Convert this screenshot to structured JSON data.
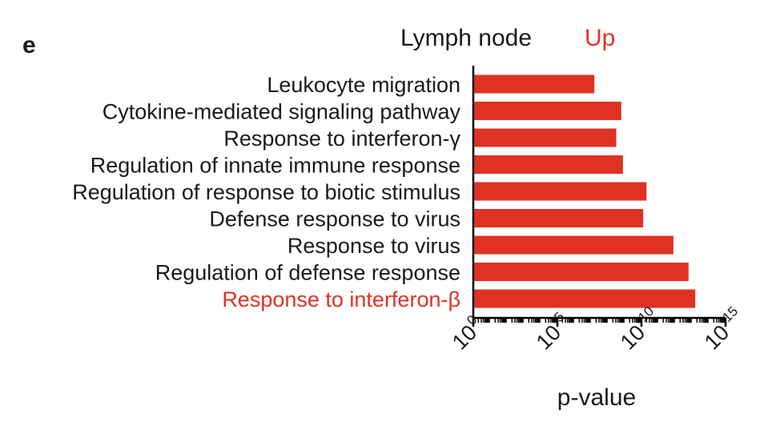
{
  "panel_label": "e",
  "title": {
    "tissue": "Lymph node",
    "direction": "Up"
  },
  "colors": {
    "bar": "#e03224",
    "highlight_text": "#e03224",
    "title_direction": "#e03224",
    "text": "#1a1a1a",
    "axis": "#000000"
  },
  "chart_data": {
    "type": "bar",
    "orientation": "horizontal",
    "categories": [
      "Leukocyte migration",
      "Cytokine-mediated signaling pathway",
      "Response to interferon-γ",
      "Regulation of innate immune response",
      "Regulation of response to biotic stimulus",
      "Defense response to virus",
      "Response to virus",
      "Regulation of defense response",
      "Response to interferon-β"
    ],
    "highlighted_category": "Response to interferon-β",
    "values": [
      7.2,
      8.8,
      8.5,
      8.9,
      10.3,
      10.1,
      11.9,
      12.8,
      13.2
    ],
    "value_meaning": "-log10(p-value)",
    "xlabel": "p-value",
    "xlim": [
      0,
      15
    ],
    "x_ticks": [
      {
        "base": "10",
        "exp": "0",
        "value": 0
      },
      {
        "base": "10",
        "exp": "-5",
        "value": 5
      },
      {
        "base": "10",
        "exp": "-10",
        "value": 10
      },
      {
        "base": "10",
        "exp": "-15",
        "value": 15
      }
    ],
    "minor_ticks_per_decade": true,
    "grid": false,
    "legend": "none"
  }
}
